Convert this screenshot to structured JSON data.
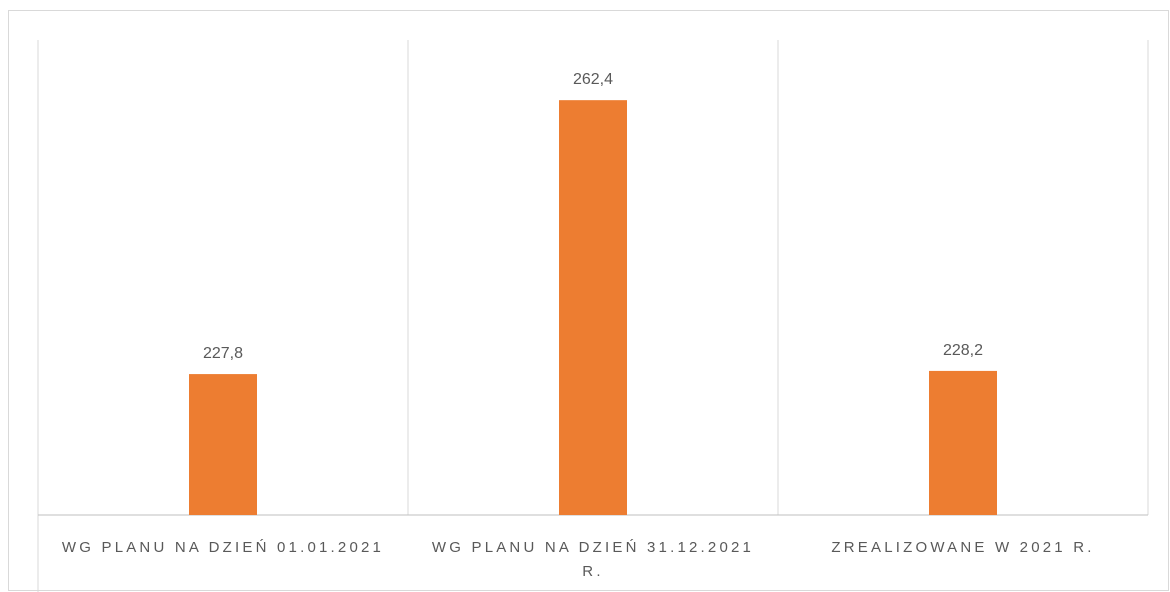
{
  "chart_data": {
    "type": "bar",
    "categories": [
      "WG PLANU NA DZIEŃ 01.01.2021",
      "WG PLANU NA DZIEŃ 31.12.2021 R.",
      "ZREALIZOWANE W 2021 R."
    ],
    "values": [
      227.8,
      262.4,
      228.2
    ],
    "value_labels": [
      "227,8",
      "262,4",
      "228,2"
    ],
    "color": "#ed7d31",
    "ylim": [
      210,
      270
    ]
  }
}
